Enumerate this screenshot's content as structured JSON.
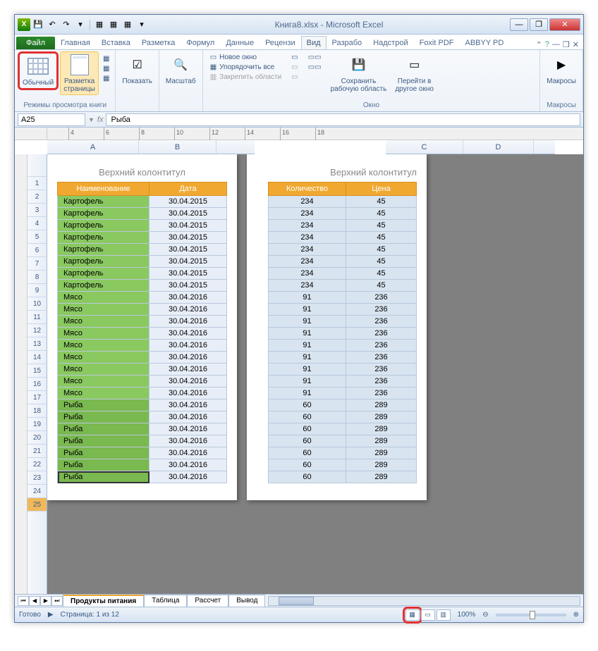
{
  "window": {
    "title": "Книга8.xlsx - Microsoft Excel",
    "min": "—",
    "max": "❐",
    "close": "✕"
  },
  "qat": {
    "save": "💾",
    "undo": "↶",
    "redo": "↷"
  },
  "tabs": {
    "file": "Файл",
    "items": [
      "Главная",
      "Вставка",
      "Разметка",
      "Формул",
      "Данные",
      "Рецензи",
      "Вид",
      "Разрабо",
      "Надстрой",
      "Foxit PDF",
      "ABBYY PD"
    ],
    "active_index": 6
  },
  "ribbon": {
    "group1_label": "Режимы просмотра книги",
    "normal": "Обычный",
    "pagelayout": "Разметка\nстраницы",
    "show": "Показать",
    "zoom": "Масштаб",
    "newwin": "Новое окно",
    "arrange": "Упорядочить все",
    "freeze": "Закрепить области",
    "window_label": "Окно",
    "savews": "Сохранить\nрабочую область",
    "switchwin": "Перейти в\nдругое окно",
    "macros": "Макросы",
    "macros_label": "Макросы"
  },
  "namebox": "A25",
  "formula": "Рыба",
  "header_text": "Верхний колонтитул",
  "columns_left": [
    "A",
    "B"
  ],
  "columns_right": [
    "C",
    "D"
  ],
  "col_widths": {
    "A": 130,
    "B": 110,
    "C": 110,
    "D": 100
  },
  "col_corner_width": 46,
  "th": {
    "name": "Наименование",
    "date": "Дата",
    "qty": "Количество",
    "price": "Цена"
  },
  "rows": [
    {
      "n": 1,
      "name": "Картофель",
      "date": "30.04.2015",
      "qty": 234,
      "price": 45,
      "cls": "pot"
    },
    {
      "n": 2,
      "name": "Картофель",
      "date": "30.04.2015",
      "qty": 234,
      "price": 45,
      "cls": "pot"
    },
    {
      "n": 3,
      "name": "Картофель",
      "date": "30.04.2015",
      "qty": 234,
      "price": 45,
      "cls": "pot"
    },
    {
      "n": 4,
      "name": "Картофель",
      "date": "30.04.2015",
      "qty": 234,
      "price": 45,
      "cls": "pot"
    },
    {
      "n": 5,
      "name": "Картофель",
      "date": "30.04.2015",
      "qty": 234,
      "price": 45,
      "cls": "pot"
    },
    {
      "n": 6,
      "name": "Картофель",
      "date": "30.04.2015",
      "qty": 234,
      "price": 45,
      "cls": "pot"
    },
    {
      "n": 7,
      "name": "Картофель",
      "date": "30.04.2015",
      "qty": 234,
      "price": 45,
      "cls": "pot"
    },
    {
      "n": 8,
      "name": "Картофель",
      "date": "30.04.2015",
      "qty": 234,
      "price": 45,
      "cls": "pot"
    },
    {
      "n": 9,
      "name": "Мясо",
      "date": "30.04.2016",
      "qty": 91,
      "price": 236,
      "cls": "meat"
    },
    {
      "n": 10,
      "name": "Мясо",
      "date": "30.04.2016",
      "qty": 91,
      "price": 236,
      "cls": "meat"
    },
    {
      "n": 11,
      "name": "Мясо",
      "date": "30.04.2016",
      "qty": 91,
      "price": 236,
      "cls": "meat"
    },
    {
      "n": 12,
      "name": "Мясо",
      "date": "30.04.2016",
      "qty": 91,
      "price": 236,
      "cls": "meat"
    },
    {
      "n": 13,
      "name": "Мясо",
      "date": "30.04.2016",
      "qty": 91,
      "price": 236,
      "cls": "meat"
    },
    {
      "n": 14,
      "name": "Мясо",
      "date": "30.04.2016",
      "qty": 91,
      "price": 236,
      "cls": "meat"
    },
    {
      "n": 15,
      "name": "Мясо",
      "date": "30.04.2016",
      "qty": 91,
      "price": 236,
      "cls": "meat"
    },
    {
      "n": 16,
      "name": "Мясо",
      "date": "30.04.2016",
      "qty": 91,
      "price": 236,
      "cls": "meat"
    },
    {
      "n": 17,
      "name": "Мясо",
      "date": "30.04.2016",
      "qty": 91,
      "price": 236,
      "cls": "meat"
    },
    {
      "n": 18,
      "name": "Рыба",
      "date": "30.04.2016",
      "qty": 60,
      "price": 289,
      "cls": "fish"
    },
    {
      "n": 19,
      "name": "Рыба",
      "date": "30.04.2016",
      "qty": 60,
      "price": 289,
      "cls": "fish"
    },
    {
      "n": 20,
      "name": "Рыба",
      "date": "30.04.2016",
      "qty": 60,
      "price": 289,
      "cls": "fish"
    },
    {
      "n": 21,
      "name": "Рыба",
      "date": "30.04.2016",
      "qty": 60,
      "price": 289,
      "cls": "fish"
    },
    {
      "n": 22,
      "name": "Рыба",
      "date": "30.04.2016",
      "qty": 60,
      "price": 289,
      "cls": "fish"
    },
    {
      "n": 23,
      "name": "Рыба",
      "date": "30.04.2016",
      "qty": 60,
      "price": 289,
      "cls": "fish"
    },
    {
      "n": 24,
      "name": "Рыба",
      "date": "30.04.2016",
      "qty": 60,
      "price": 289,
      "cls": "fish"
    }
  ],
  "selected_row": 25,
  "ruler_ticks": [
    4,
    6,
    8,
    10,
    12,
    14,
    16,
    18
  ],
  "sheets": {
    "items": [
      "Продукты питания",
      "Таблица",
      "Рассчет",
      "Вывод"
    ],
    "active": 0
  },
  "status": {
    "ready": "Готово",
    "page": "Страница: 1 из 12",
    "zoom": "100%"
  },
  "colors": {
    "header_bg": "#f0a830",
    "cell_green": "#8ac860",
    "cell_blue_light": "#e8eef7",
    "cell_blue": "#d8e4f0",
    "red_frame": "#e03030"
  }
}
